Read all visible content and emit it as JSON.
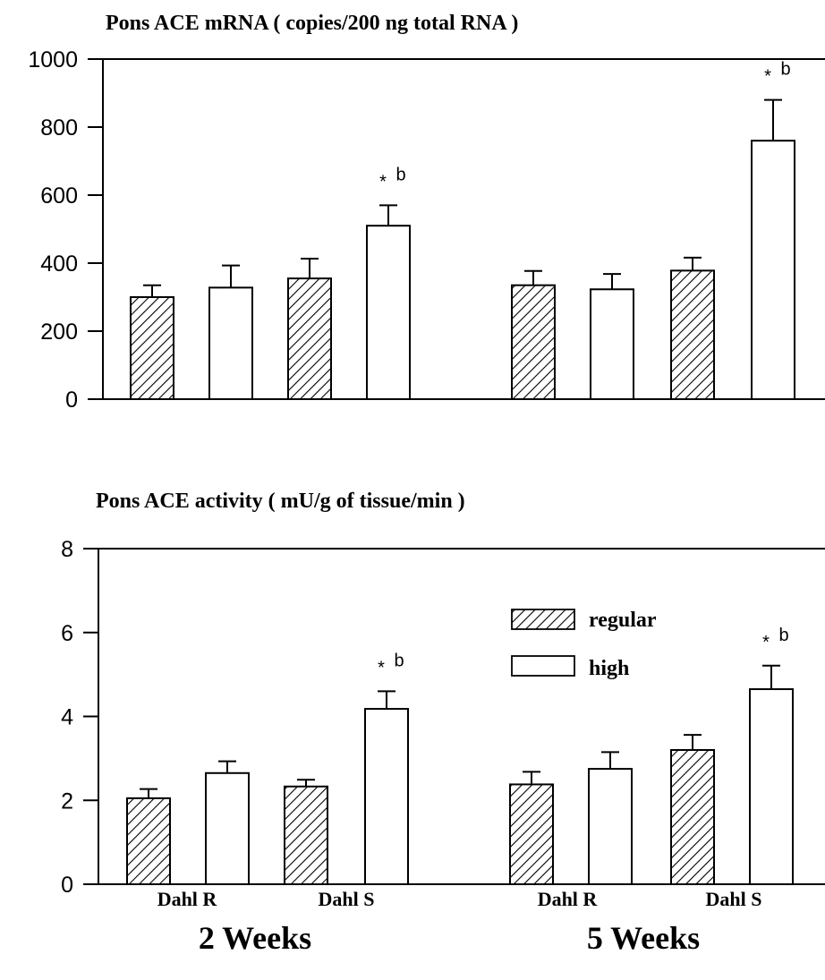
{
  "chart_data": [
    {
      "type": "bar",
      "title": "Pons ACE mRNA ( copies/200 ng total RNA )",
      "ylim": [
        0,
        1000
      ],
      "yticks": [
        0,
        200,
        400,
        600,
        800,
        1000
      ],
      "categories": [
        "Dahl R regular",
        "Dahl R high",
        "Dahl S regular",
        "Dahl S high"
      ],
      "groups": [
        "2 Weeks",
        "5 Weeks"
      ],
      "series": [
        {
          "name": "regular",
          "pattern": "hatched",
          "values": [
            [
              300,
              355
            ],
            [
              335,
              378
            ]
          ],
          "errors": [
            [
              35,
              58
            ],
            [
              42,
              38
            ]
          ]
        },
        {
          "name": "high",
          "pattern": "open",
          "values": [
            [
              328,
              510
            ],
            [
              323,
              760
            ]
          ],
          "errors": [
            [
              65,
              60
            ],
            [
              45,
              120
            ]
          ]
        }
      ],
      "annotations": [
        {
          "group": "2 Weeks",
          "bar": "Dahl S high",
          "text_star": "*",
          "text_letter": "b"
        },
        {
          "group": "5 Weeks",
          "bar": "Dahl S high",
          "text_star": "*",
          "text_letter": "b"
        }
      ]
    },
    {
      "type": "bar",
      "title": "Pons ACE activity ( mU/g of tissue/min )",
      "ylim": [
        0,
        8
      ],
      "yticks": [
        0,
        2,
        4,
        6,
        8
      ],
      "categories": [
        "Dahl R regular",
        "Dahl R high",
        "Dahl S regular",
        "Dahl S high"
      ],
      "groups": [
        "2 Weeks",
        "5 Weeks"
      ],
      "series": [
        {
          "name": "regular",
          "pattern": "hatched",
          "values": [
            [
              2.05,
              2.33
            ],
            [
              2.38,
              3.2
            ]
          ],
          "errors": [
            [
              0.22,
              0.16
            ],
            [
              0.3,
              0.36
            ]
          ]
        },
        {
          "name": "high",
          "pattern": "open",
          "values": [
            [
              2.65,
              4.18
            ],
            [
              2.75,
              4.65
            ]
          ],
          "errors": [
            [
              0.28,
              0.42
            ],
            [
              0.4,
              0.56
            ]
          ]
        }
      ],
      "annotations": [
        {
          "group": "2 Weeks",
          "bar": "Dahl S high",
          "text_star": "*",
          "text_letter": "b"
        },
        {
          "group": "5 Weeks",
          "bar": "Dahl S high",
          "text_star": "*",
          "text_letter": "b"
        }
      ],
      "legend": {
        "placement": "top-right",
        "items": [
          {
            "label": "regular",
            "pattern": "hatched"
          },
          {
            "label": "high",
            "pattern": "open"
          }
        ]
      }
    }
  ],
  "x_axis": {
    "strain_labels": [
      "Dahl R",
      "Dahl S",
      "Dahl R",
      "Dahl S"
    ],
    "group_labels": [
      "2 Weeks",
      "5 Weeks"
    ]
  }
}
